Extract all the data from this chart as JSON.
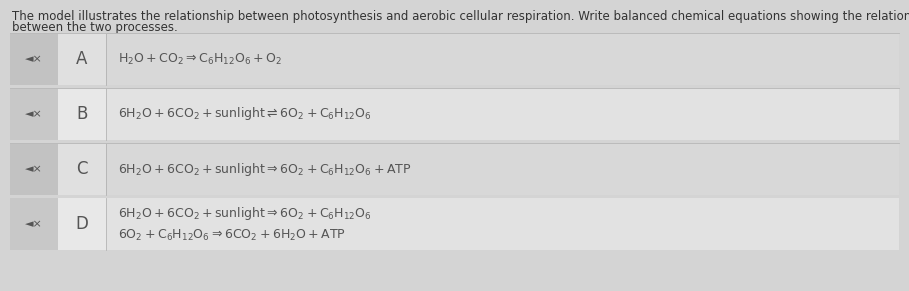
{
  "title_line1": "The model illustrates the relationship between photosynthesis and aerobic cellular respiration. Write balanced chemical equations showing the relationship",
  "title_line2": "between the two processes.",
  "bg_color": "#d4d4d4",
  "row_data": [
    {
      "label": "A",
      "line1": "$\\mathregular{H_2O + CO_2 \\Rightarrow C_6H_{12}O_6 + O_2}$",
      "line2": null,
      "row_color": "#d8d8d8",
      "icon_color": "#c2c2c2",
      "label_color": "#e0e0e0"
    },
    {
      "label": "B",
      "line1": "$\\mathregular{6H_2O + 6CO_2 + sunlight \\rightleftharpoons 6O_2 + C_6H_{12}O_6}$",
      "line2": null,
      "row_color": "#e2e2e2",
      "icon_color": "#c8c8c8",
      "label_color": "#e8e8e8"
    },
    {
      "label": "C",
      "line1": "$\\mathregular{6H_2O + 6CO_2 + sunlight \\Rightarrow 6O_2 + C_6H_{12}O_6 + ATP}$",
      "line2": null,
      "row_color": "#d8d8d8",
      "icon_color": "#c2c2c2",
      "label_color": "#e0e0e0"
    },
    {
      "label": "D",
      "line1": "$\\mathregular{6H_2O + 6CO_2 + sunlight \\Rightarrow 6O_2 + C_6H_{12}O_6}$",
      "line2": "$\\mathregular{6O_2 + C_6H_{12}O_6 \\Rightarrow 6CO_2 + 6H_2O + ATP}$",
      "row_color": "#e2e2e2",
      "icon_color": "#c8c8c8",
      "label_color": "#e8e8e8"
    }
  ],
  "title_fontsize": 8.5,
  "text_fontsize": 9.0,
  "label_fontsize": 12,
  "text_color": "#555555",
  "title_color": "#333333"
}
